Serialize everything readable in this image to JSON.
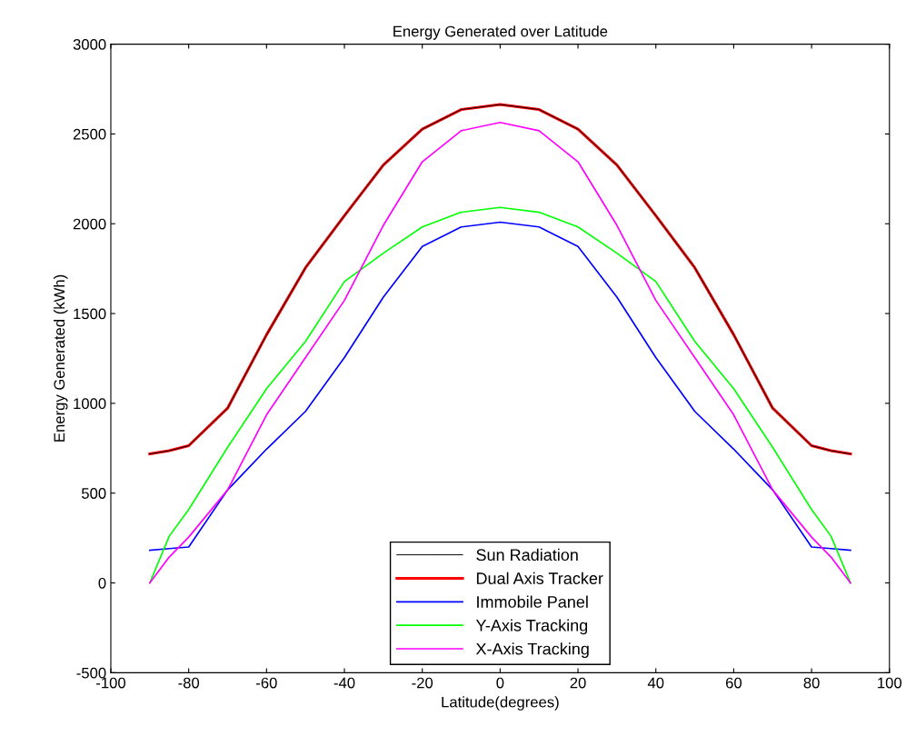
{
  "chart_data": {
    "type": "line",
    "title": "Energy Generated over Latitude",
    "xlabel": "Latitude(degrees)",
    "ylabel": "Energy Generated (kWh)",
    "x": [
      -90,
      -85,
      -80,
      -70,
      -60,
      -50,
      -40,
      -30,
      -20,
      -10,
      0,
      10,
      20,
      30,
      40,
      50,
      60,
      70,
      80,
      85,
      90
    ],
    "series": [
      {
        "name": "Sun Radiation",
        "color": "#000000",
        "values": [
          718,
          736,
          764,
          973,
          1382,
          1755,
          2045,
          2327,
          2527,
          2636,
          2664,
          2636,
          2527,
          2327,
          2045,
          1755,
          1382,
          973,
          764,
          736,
          718
        ]
      },
      {
        "name": "Dual Axis Tracker",
        "color": "#ff0000",
        "values": [
          718,
          736,
          764,
          973,
          1382,
          1755,
          2045,
          2327,
          2527,
          2636,
          2664,
          2636,
          2527,
          2327,
          2045,
          1755,
          1382,
          973,
          764,
          736,
          718
        ]
      },
      {
        "name": "Immobile Panel",
        "color": "#0000ff",
        "values": [
          182,
          191,
          200,
          518,
          745,
          955,
          1255,
          1591,
          1873,
          1982,
          2009,
          1982,
          1873,
          1591,
          1255,
          955,
          745,
          518,
          200,
          191,
          182
        ]
      },
      {
        "name": "Y-Axis Tracking",
        "color": "#00ff00",
        "values": [
          0,
          260,
          409,
          755,
          1082,
          1345,
          1678,
          1836,
          1982,
          2064,
          2091,
          2064,
          1982,
          1836,
          1678,
          1345,
          1082,
          755,
          409,
          260,
          0
        ]
      },
      {
        "name": "X-Axis Tracking",
        "color": "#ff00ff",
        "values": [
          0,
          144,
          255,
          518,
          936,
          1255,
          1573,
          1991,
          2345,
          2518,
          2564,
          2518,
          2345,
          1991,
          1573,
          1255,
          936,
          518,
          255,
          144,
          0
        ]
      }
    ],
    "xlim": [
      -100,
      100
    ],
    "xticks": [
      -100,
      -80,
      -60,
      -40,
      -20,
      0,
      20,
      40,
      60,
      80,
      100
    ],
    "ylim": [
      -500,
      3000
    ],
    "yticks": [
      -500,
      0,
      500,
      1000,
      1500,
      2000,
      2500,
      3000
    ],
    "grid": false,
    "legend": "bottom",
    "line_style": "solid",
    "marker": "none"
  }
}
